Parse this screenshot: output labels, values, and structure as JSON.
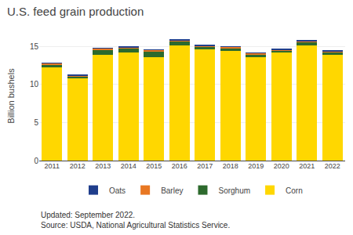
{
  "chart_data": {
    "type": "bar",
    "title": "U.S. feed grain production",
    "y_label": "Billion bushels",
    "annotations": [
      "Updated: September 2022.",
      "Source: USDA, National Agricultural Statistics Service."
    ],
    "categories": [
      "2011",
      "2012",
      "2013",
      "2014",
      "2015",
      "2016",
      "2017",
      "2018",
      "2019",
      "2020",
      "2021",
      "2022"
    ],
    "series": [
      {
        "name": "Corn",
        "color": "#FFD700",
        "values": [
          12.31,
          10.78,
          13.93,
          14.22,
          13.6,
          15.15,
          14.6,
          14.42,
          13.62,
          14.18,
          15.12,
          13.93
        ]
      },
      {
        "name": "Sorghum",
        "color": "#2D6A2D",
        "values": [
          0.3,
          0.22,
          0.61,
          0.47,
          0.75,
          0.52,
          0.38,
          0.36,
          0.36,
          0.27,
          0.49,
          0.34
        ]
      },
      {
        "name": "Barley",
        "color": "#E87722",
        "values": [
          0.18,
          0.22,
          0.22,
          0.21,
          0.18,
          0.17,
          0.16,
          0.16,
          0.16,
          0.17,
          0.15,
          0.14
        ]
      },
      {
        "name": "Oats",
        "color": "#1F3E8C",
        "values": [
          0.06,
          0.06,
          0.07,
          0.06,
          0.06,
          0.06,
          0.06,
          0.06,
          0.06,
          0.06,
          0.08,
          0.07
        ]
      }
    ],
    "stacked": true,
    "ylim": [
      0,
      17
    ],
    "yticks": [
      0,
      5,
      10,
      15
    ],
    "grid": true,
    "legend": "bottom"
  }
}
